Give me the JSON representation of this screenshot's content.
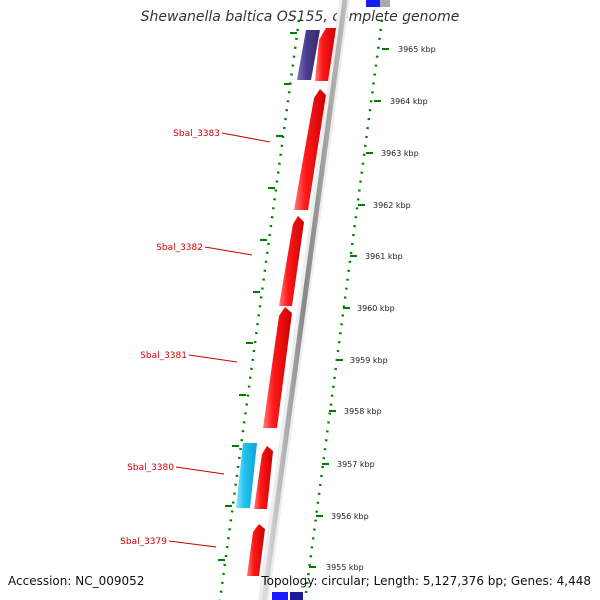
{
  "header": {
    "title": "Shewanella baltica OS155, complete genome"
  },
  "footer": {
    "accession": "Accession: NC_009052",
    "summary": "Topology: circular; Length: 5,127,376 bp; Genes: 4,448"
  },
  "colors": {
    "gene_forward": "#ff0000",
    "gene_other_dark": "#4b3d8f",
    "gene_other_light": "#22c3f0",
    "backbone": "#999999",
    "tick_green": "#008000",
    "label_red": "#cc0000",
    "edge_blue": "#1a1aff"
  },
  "scale": {
    "ticks": [
      {
        "label": "3965 kbp"
      },
      {
        "label": "3964 kbp"
      },
      {
        "label": "3963 kbp"
      },
      {
        "label": "3962 kbp"
      },
      {
        "label": "3961 kbp"
      },
      {
        "label": "3960 kbp"
      },
      {
        "label": "3959 kbp"
      },
      {
        "label": "3958 kbp"
      },
      {
        "label": "3957 kbp"
      },
      {
        "label": "3956 kbp"
      },
      {
        "label": "3955 kbp"
      }
    ]
  },
  "genes": [
    {
      "label": "Sbal_3383"
    },
    {
      "label": "Sbal_3382"
    },
    {
      "label": "Sbal_3381"
    },
    {
      "label": "Sbal_3380"
    },
    {
      "label": "Sbal_3379"
    }
  ]
}
